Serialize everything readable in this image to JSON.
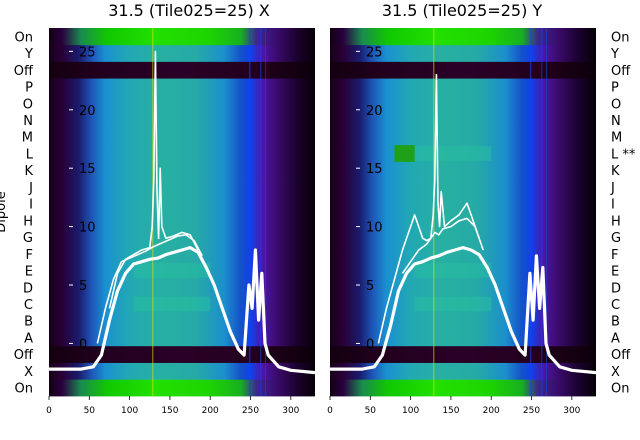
{
  "chart_data": {
    "type": "heatmap",
    "shared_ylabel": "Dipole",
    "row_labels": [
      "On",
      "X",
      "Off",
      "A",
      "B",
      "C",
      "D",
      "E",
      "F",
      "G",
      "H",
      "I",
      "J",
      "K",
      "L",
      "M",
      "N",
      "O",
      "P",
      "Off",
      "Y",
      "On"
    ],
    "right_row_labels": [
      "On",
      "X",
      "Off",
      "A",
      "B",
      "C",
      "D",
      "E",
      "F",
      "G",
      "H",
      "I",
      "J",
      "K",
      "L **",
      "M",
      "N",
      "O",
      "P",
      "Off",
      "Y",
      "On"
    ],
    "xlim": [
      0,
      330
    ],
    "x_ticks": [
      0,
      50,
      100,
      150,
      200,
      250,
      300
    ],
    "overlay_ylim": [
      -4.5,
      27
    ],
    "overlay_yticks": [
      0,
      5,
      10,
      15,
      20,
      25
    ],
    "panels": [
      {
        "title": "31.5 (Tile025=25) X",
        "bright_rows": [
          5,
          7
        ],
        "series": [
          {
            "values": [
              [
                0,
                -2.2
              ],
              [
                40,
                -2.2
              ],
              [
                55,
                -2
              ],
              [
                65,
                -1
              ],
              [
                75,
                2
              ],
              [
                85,
                4.5
              ],
              [
                95,
                6
              ],
              [
                105,
                6.8
              ],
              [
                115,
                7
              ],
              [
                125,
                7.2
              ],
              [
                135,
                7.3
              ],
              [
                145,
                7.6
              ],
              [
                155,
                7.8
              ],
              [
                165,
                8
              ],
              [
                175,
                8.2
              ],
              [
                185,
                7.8
              ],
              [
                195,
                6.5
              ],
              [
                205,
                5
              ],
              [
                215,
                3
              ],
              [
                225,
                1
              ],
              [
                235,
                -0.5
              ],
              [
                242,
                -1
              ],
              [
                248,
                5
              ],
              [
                252,
                3
              ],
              [
                256,
                8
              ],
              [
                260,
                2
              ],
              [
                264,
                6
              ],
              [
                268,
                0
              ],
              [
                272,
                -1
              ],
              [
                285,
                -2
              ],
              [
                300,
                -2.3
              ],
              [
                330,
                -2.5
              ]
            ],
            "width": 3.2
          },
          {
            "values": [
              [
                60,
                0
              ],
              [
                70,
                3
              ],
              [
                80,
                5.5
              ],
              [
                90,
                7
              ],
              [
                100,
                7.3
              ],
              [
                110,
                7.6
              ],
              [
                120,
                7.9
              ],
              [
                130,
                8.3
              ],
              [
                140,
                8.6
              ],
              [
                150,
                8.9
              ],
              [
                160,
                9.2
              ],
              [
                170,
                9.3
              ],
              [
                180,
                8.8
              ],
              [
                190,
                7.5
              ]
            ],
            "width": 1.6
          },
          {
            "values": [
              [
                75,
                3
              ],
              [
                85,
                6
              ],
              [
                95,
                7.2
              ],
              [
                105,
                7.6
              ],
              [
                115,
                8
              ],
              [
                125,
                8.2
              ],
              [
                128,
                10
              ],
              [
                130,
                14
              ],
              [
                132,
                25
              ],
              [
                134,
                13
              ],
              [
                136,
                9
              ],
              [
                138,
                15
              ],
              [
                140,
                10
              ],
              [
                145,
                9
              ],
              [
                155,
                9.2
              ],
              [
                165,
                9.5
              ],
              [
                175,
                9.3
              ],
              [
                185,
                8
              ]
            ],
            "width": 1.6
          }
        ]
      },
      {
        "title": "31.5 (Tile025=25) Y",
        "bright_rows": [
          5,
          7,
          14
        ],
        "series": [
          {
            "values": [
              [
                0,
                -2.2
              ],
              [
                40,
                -2.2
              ],
              [
                55,
                -2
              ],
              [
                65,
                -1
              ],
              [
                75,
                1.5
              ],
              [
                85,
                4.5
              ],
              [
                95,
                6
              ],
              [
                105,
                6.8
              ],
              [
                115,
                7
              ],
              [
                125,
                7.3
              ],
              [
                135,
                7.5
              ],
              [
                145,
                7.8
              ],
              [
                155,
                8
              ],
              [
                165,
                8.2
              ],
              [
                175,
                8
              ],
              [
                185,
                7.6
              ],
              [
                195,
                6.5
              ],
              [
                205,
                5
              ],
              [
                215,
                3
              ],
              [
                225,
                1
              ],
              [
                235,
                -0.5
              ],
              [
                242,
                -1
              ],
              [
                248,
                6
              ],
              [
                252,
                2
              ],
              [
                256,
                7.5
              ],
              [
                260,
                3
              ],
              [
                264,
                6.5
              ],
              [
                268,
                0
              ],
              [
                272,
                -1
              ],
              [
                285,
                -2
              ],
              [
                300,
                -2.3
              ],
              [
                330,
                -2.5
              ]
            ],
            "width": 3.2
          },
          {
            "values": [
              [
                60,
                0
              ],
              [
                70,
                3
              ],
              [
                80,
                5.5
              ],
              [
                90,
                8
              ],
              [
                100,
                10
              ],
              [
                105,
                11
              ],
              [
                110,
                10
              ],
              [
                115,
                9
              ],
              [
                120,
                8.8
              ],
              [
                125,
                9
              ],
              [
                130,
                9.5
              ],
              [
                135,
                9.3
              ],
              [
                140,
                9.8
              ],
              [
                150,
                10
              ],
              [
                160,
                10.5
              ],
              [
                170,
                10.7
              ],
              [
                180,
                10
              ],
              [
                190,
                8
              ]
            ],
            "width": 1.6
          },
          {
            "values": [
              [
                90,
                6
              ],
              [
                100,
                7
              ],
              [
                110,
                8
              ],
              [
                120,
                8.5
              ],
              [
                125,
                9
              ],
              [
                128,
                11
              ],
              [
                130,
                14
              ],
              [
                132,
                23
              ],
              [
                134,
                12
              ],
              [
                136,
                10
              ],
              [
                138,
                13
              ],
              [
                142,
                10
              ],
              [
                150,
                10.5
              ],
              [
                160,
                11
              ],
              [
                170,
                12
              ],
              [
                175,
                11
              ],
              [
                185,
                9
              ]
            ],
            "width": 1.6
          }
        ]
      }
    ]
  }
}
